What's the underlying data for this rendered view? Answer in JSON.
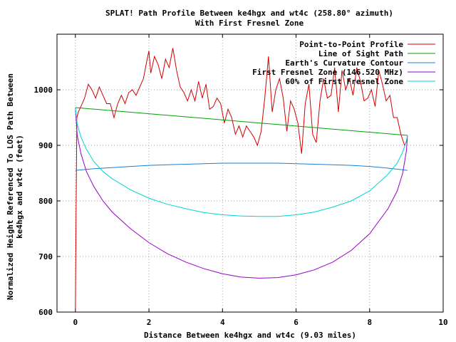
{
  "chart_data": {
    "type": "line",
    "title": "SPLAT! Path Profile Between ke4hgx and wt4c (258.80° azimuth)",
    "subtitle": "With First Fresnel Zone",
    "xlabel": "Distance Between ke4hgx and wt4c (9.03 miles)",
    "ylabel": "Normalized Height Referenced To LOS Path Between ke4hgx and wt4c (feet)",
    "ylabel_lines": [
      "Normalized Height Referenced To LOS Path Between",
      "ke4hgx and wt4c (feet)"
    ],
    "xlim": [
      -0.5,
      10
    ],
    "ylim": [
      600,
      1100
    ],
    "x_ticks": [
      0,
      2,
      4,
      6,
      8,
      10
    ],
    "y_ticks": [
      600,
      700,
      800,
      900,
      1000
    ],
    "grid": true,
    "legend_position": "top-right",
    "series": [
      {
        "name": "Point-to-Point Profile",
        "color": "#d40000",
        "x": [
          0,
          0.02,
          0.04,
          0.08,
          0.15,
          0.25,
          0.35,
          0.45,
          0.55,
          0.65,
          0.75,
          0.85,
          0.95,
          1.05,
          1.15,
          1.25,
          1.35,
          1.45,
          1.55,
          1.65,
          1.75,
          1.85,
          1.95,
          2.0,
          2.05,
          2.15,
          2.25,
          2.35,
          2.45,
          2.55,
          2.65,
          2.75,
          2.85,
          2.95,
          3.05,
          3.15,
          3.25,
          3.35,
          3.45,
          3.55,
          3.65,
          3.75,
          3.85,
          3.95,
          4.05,
          4.15,
          4.25,
          4.35,
          4.45,
          4.55,
          4.65,
          4.75,
          4.85,
          4.95,
          5.05,
          5.15,
          5.25,
          5.35,
          5.45,
          5.55,
          5.65,
          5.75,
          5.85,
          5.95,
          6.05,
          6.15,
          6.25,
          6.35,
          6.45,
          6.55,
          6.65,
          6.75,
          6.85,
          6.95,
          7.05,
          7.15,
          7.25,
          7.35,
          7.45,
          7.55,
          7.65,
          7.75,
          7.85,
          7.95,
          8.05,
          8.15,
          8.25,
          8.35,
          8.45,
          8.55,
          8.65,
          8.75,
          8.85,
          8.95,
          9.03
        ],
        "values": [
          600,
          780,
          950,
          960,
          970,
          985,
          1010,
          1000,
          985,
          1005,
          990,
          975,
          975,
          950,
          975,
          990,
          975,
          995,
          1000,
          990,
          1005,
          1020,
          1055,
          1070,
          1030,
          1060,
          1045,
          1020,
          1055,
          1040,
          1075,
          1035,
          1005,
          995,
          980,
          1000,
          980,
          1015,
          985,
          1010,
          965,
          970,
          985,
          975,
          940,
          965,
          950,
          920,
          935,
          915,
          935,
          925,
          915,
          900,
          925,
          985,
          1060,
          960,
          1000,
          1020,
          985,
          925,
          980,
          965,
          940,
          885,
          975,
          1010,
          920,
          905,
          980,
          1020,
          985,
          990,
          1040,
          960,
          1035,
          1000,
          1020,
          990,
          1040,
          1015,
          980,
          985,
          1000,
          970,
          1035,
          1010,
          980,
          990,
          950,
          950,
          920,
          900,
          910
        ]
      },
      {
        "name": "Line of Sight Path",
        "color": "#00a000",
        "x": [
          0,
          9.03
        ],
        "values": [
          968,
          918
        ]
      },
      {
        "name": "Earth's Curvature Contour",
        "color": "#1e7ed0",
        "x": [
          0,
          0.5,
          1,
          1.5,
          2,
          2.5,
          3,
          3.5,
          4,
          4.5,
          5,
          5.5,
          6,
          6.5,
          7,
          7.5,
          8,
          8.5,
          9.03
        ],
        "values": [
          855,
          858,
          860,
          862,
          864,
          865,
          866,
          867,
          868,
          868,
          868,
          868,
          867,
          866,
          865,
          864,
          862,
          859,
          855
        ]
      },
      {
        "name": "First Fresnel Zone (146.520 MHz)",
        "color": "#9a00c8",
        "x": [
          0,
          0.05,
          0.15,
          0.3,
          0.5,
          0.75,
          1,
          1.5,
          2,
          2.5,
          3,
          3.5,
          4,
          4.5,
          5,
          5.5,
          6,
          6.5,
          7,
          7.5,
          8,
          8.5,
          8.75,
          8.9,
          9.0,
          9.03
        ],
        "values": [
          968,
          918,
          885,
          853,
          826,
          800,
          780,
          750,
          725,
          705,
          690,
          678,
          669,
          663,
          661,
          662,
          667,
          676,
          690,
          711,
          741,
          786,
          818,
          850,
          890,
          918
        ]
      },
      {
        "name": "60% of First Fresnel Zone",
        "color": "#00d4d4",
        "x": [
          0,
          0.05,
          0.15,
          0.3,
          0.5,
          0.75,
          1,
          1.5,
          2,
          2.5,
          3,
          3.5,
          4,
          4.5,
          5,
          5.5,
          6,
          6.5,
          7,
          7.5,
          8,
          8.5,
          8.75,
          8.9,
          9.0,
          9.03
        ],
        "values": [
          968,
          938,
          915,
          893,
          871,
          853,
          840,
          820,
          805,
          794,
          786,
          779,
          775,
          773,
          772,
          772,
          775,
          780,
          789,
          800,
          818,
          848,
          868,
          888,
          908,
          918
        ]
      }
    ]
  }
}
